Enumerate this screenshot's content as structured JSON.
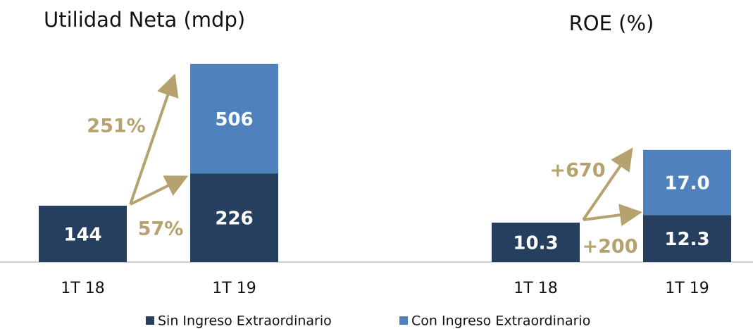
{
  "chart_data": [
    {
      "type": "bar",
      "title": "Utilidad Neta (mdp)",
      "stacked": false,
      "categories": [
        "1T 18",
        "1T 19"
      ],
      "series": [
        {
          "name": "Sin Ingreso Extraordinario",
          "color": "#263f5f",
          "values": [
            144,
            226
          ]
        },
        {
          "name": "Con Ingreso Extraordinario",
          "color": "#4f81bd",
          "values": [
            null,
            506
          ]
        }
      ],
      "ylim": [
        0,
        520
      ],
      "annotations": [
        "251%",
        "57%"
      ]
    },
    {
      "type": "bar",
      "title": "ROE (%)",
      "stacked": true,
      "categories": [
        "1T 18",
        "1T 19"
      ],
      "series": [
        {
          "color": "#263f5f",
          "values": [
            10.3,
            12.3
          ]
        },
        {
          "color": "#4f81bd",
          "values": [
            null,
            17
          ],
          "value_labels": [
            null,
            "17.0"
          ]
        }
      ],
      "ylim": [
        0,
        30
      ],
      "annotations": [
        "+670",
        "+200"
      ]
    }
  ]
}
